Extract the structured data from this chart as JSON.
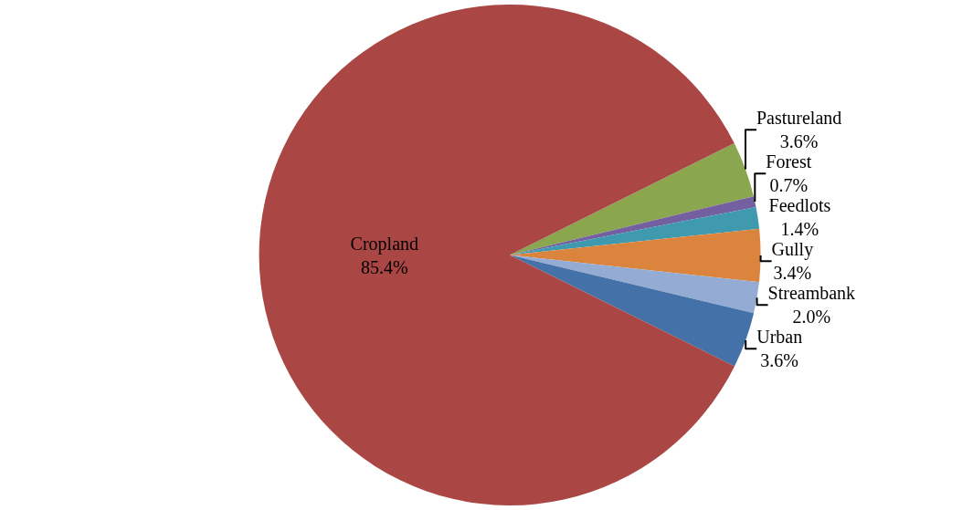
{
  "chart_data": {
    "type": "pie",
    "categories": [
      "Pastureland",
      "Forest",
      "Feedlots",
      "Gully",
      "Streambank",
      "Urban",
      "Cropland"
    ],
    "values": [
      3.6,
      0.7,
      1.4,
      3.4,
      2.0,
      3.6,
      85.4
    ],
    "value_labels": [
      "3.6%",
      "0.7%",
      "1.4%",
      "3.4%",
      "2.0%",
      "3.6%",
      "85.4%"
    ],
    "colors": [
      "#8aa64e",
      "#7460a0",
      "#3f9ab0",
      "#db843d",
      "#94acd4",
      "#4472a8",
      "#aa4644"
    ],
    "legend": false
  }
}
